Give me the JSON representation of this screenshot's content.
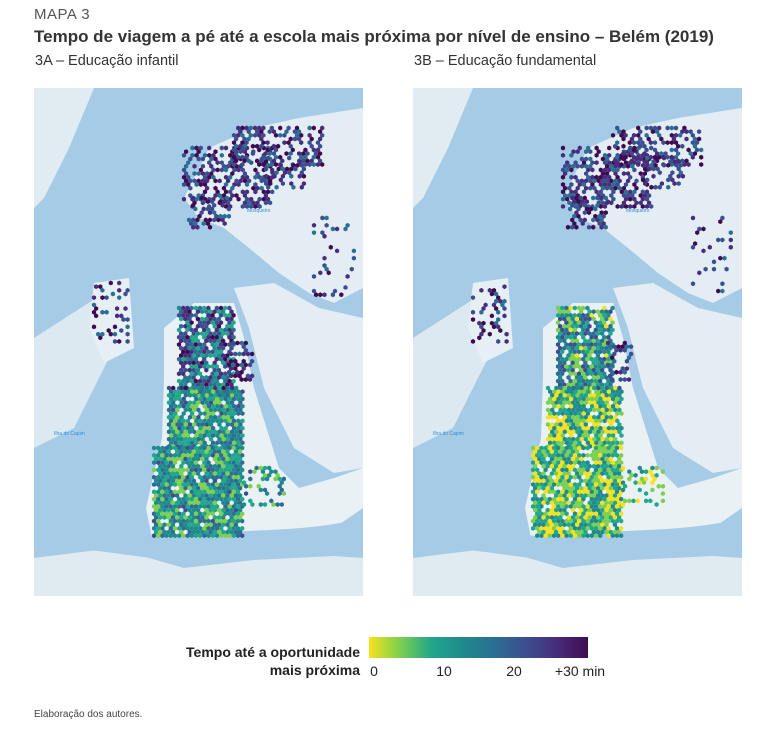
{
  "header": {
    "kicker": "MAPA 3",
    "title": "Tempo de viagem a pé até a escola mais próxima por nível de ensino – Belém (2019)"
  },
  "maps": [
    {
      "id": "3A",
      "subtitle": "3A – Educação infantil",
      "place_mosqueiro": "Mosqueiro",
      "place_left": "Ilha do Capim",
      "dominant": "green"
    },
    {
      "id": "3B",
      "subtitle": "3B – Educação fundamental",
      "place_mosqueiro": "Mosqueiro",
      "place_left": "Ilha do Capim",
      "dominant": "yellow"
    }
  ],
  "legend": {
    "label_line1": "Tempo até a oportunidade",
    "label_line2": "mais próxima",
    "min": 0,
    "max": 30,
    "ticks": [
      {
        "value": 0,
        "label": "0"
      },
      {
        "value": 10,
        "label": "10"
      },
      {
        "value": 20,
        "label": "20"
      },
      {
        "value": 30,
        "label": "+30 min"
      }
    ],
    "colors": [
      "#f7e11f",
      "#7ccf4f",
      "#21a68c",
      "#1f8a8c",
      "#2a6f93",
      "#3b4f8e",
      "#472d7b",
      "#3e0b51"
    ]
  },
  "source": "Elaboração dos autores."
}
